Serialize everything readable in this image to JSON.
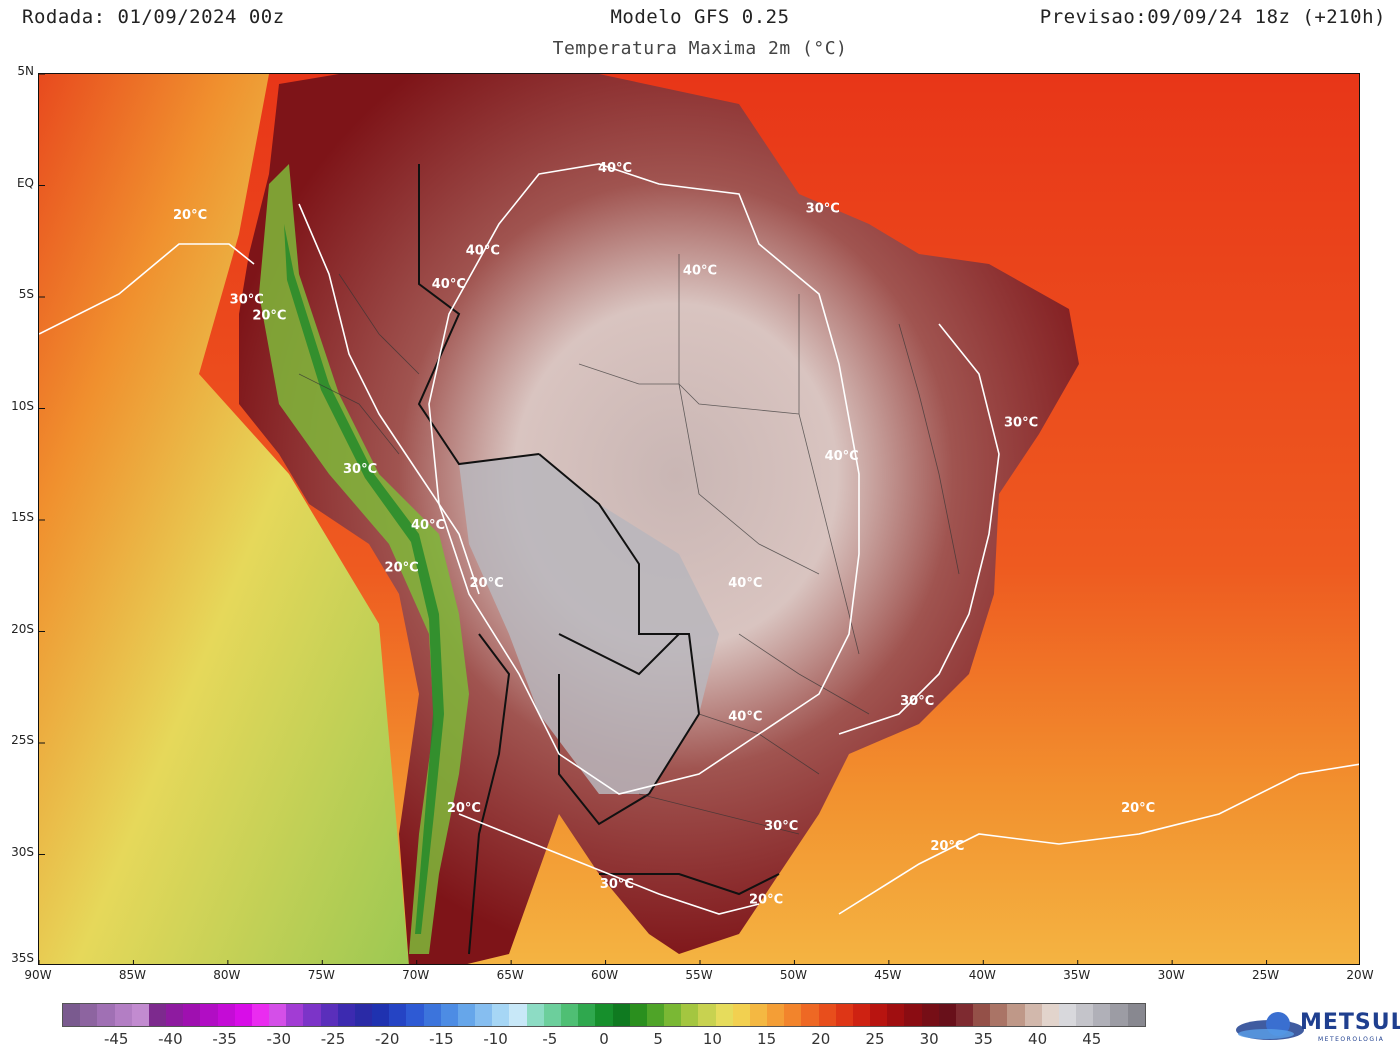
{
  "header": {
    "run": "Rodada: 01/09/2024 00z",
    "model": "Modelo GFS 0.25",
    "forecast": "Previsao:09/09/24 18z (+210h)",
    "subtitle": "Temperatura Maxima 2m (°C)"
  },
  "axes": {
    "lat_labels": [
      "5N",
      "EQ",
      "5S",
      "10S",
      "15S",
      "20S",
      "25S",
      "30S",
      "35S"
    ],
    "lon_labels": [
      "90W",
      "85W",
      "80W",
      "75W",
      "70W",
      "65W",
      "60W",
      "55W",
      "50W",
      "45W",
      "40W",
      "35W",
      "30W",
      "25W",
      "20W"
    ],
    "lat_range": [
      -35,
      5
    ],
    "lon_range": [
      -90,
      -20
    ]
  },
  "isotherm_labels": [
    {
      "text": "20°C",
      "lon": -82,
      "lat": -1.5
    },
    {
      "text": "40°C",
      "lon": -59.5,
      "lat": 0.6
    },
    {
      "text": "30°C",
      "lon": -48.5,
      "lat": -1.2
    },
    {
      "text": "40°C",
      "lon": -66.5,
      "lat": -3.1
    },
    {
      "text": "40°C",
      "lon": -55,
      "lat": -4.0
    },
    {
      "text": "40°C",
      "lon": -68.3,
      "lat": -4.6
    },
    {
      "text": "30°C",
      "lon": -79,
      "lat": -5.3
    },
    {
      "text": "20°C",
      "lon": -77.8,
      "lat": -6.0
    },
    {
      "text": "30°C",
      "lon": -38,
      "lat": -10.8
    },
    {
      "text": "40°C",
      "lon": -47.5,
      "lat": -12.3
    },
    {
      "text": "30°C",
      "lon": -73,
      "lat": -12.9
    },
    {
      "text": "40°C",
      "lon": -69.4,
      "lat": -15.4
    },
    {
      "text": "20°C",
      "lon": -70.8,
      "lat": -17.3
    },
    {
      "text": "20°C",
      "lon": -66.3,
      "lat": -18.0
    },
    {
      "text": "40°C",
      "lon": -52.6,
      "lat": -18.0
    },
    {
      "text": "30°C",
      "lon": -43.5,
      "lat": -23.3
    },
    {
      "text": "40°C",
      "lon": -52.6,
      "lat": -24.0
    },
    {
      "text": "20°C",
      "lon": -67.5,
      "lat": -28.1
    },
    {
      "text": "30°C",
      "lon": -50.7,
      "lat": -28.9
    },
    {
      "text": "20°C",
      "lon": -31.8,
      "lat": -28.1
    },
    {
      "text": "20°C",
      "lon": -41.9,
      "lat": -29.8
    },
    {
      "text": "30°C",
      "lon": -59.4,
      "lat": -31.5
    },
    {
      "text": "20°C",
      "lon": -51.5,
      "lat": -32.2
    }
  ],
  "colorbar": {
    "colors": [
      "#7a5a8f",
      "#8d64a0",
      "#a070b4",
      "#b37ec4",
      "#c28bd0",
      "#7d2a8e",
      "#8e1ba0",
      "#9f10b0",
      "#b10dc4",
      "#c40cd6",
      "#d80de8",
      "#ea2cf0",
      "#d44fe8",
      "#a23cd4",
      "#7c34c8",
      "#5a2fbb",
      "#3c2ab0",
      "#2a2aa6",
      "#1f32b0",
      "#2544c4",
      "#2e5ad4",
      "#3c74dc",
      "#4d8ce4",
      "#66a6ea",
      "#86bef0",
      "#a6d6f5",
      "#c8e8f8",
      "#8ddcc4",
      "#6ccf9c",
      "#4fbf74",
      "#2fa84e",
      "#168f2c",
      "#0f7a20",
      "#2a8f1e",
      "#4fa428",
      "#7ab834",
      "#a4c640",
      "#c8d250",
      "#e6dc5c",
      "#f2d050",
      "#f4b842",
      "#f49e36",
      "#f2842c",
      "#ee6824",
      "#e84e1c",
      "#de3616",
      "#ce2212",
      "#b81410",
      "#a00e10",
      "#8a0c12",
      "#760e16",
      "#68101a",
      "#7e2a30",
      "#945048",
      "#aa7466",
      "#bf9888",
      "#d2b8ac",
      "#e2d4cc",
      "#d8d8dc",
      "#c4c4ca",
      "#b0b0b8",
      "#9c9ca4",
      "#888890"
    ],
    "ticks": [
      "-45",
      "-40",
      "-35",
      "-30",
      "-25",
      "-20",
      "-15",
      "-10",
      "-5",
      "0",
      "5",
      "10",
      "15",
      "20",
      "25",
      "30",
      "35",
      "40",
      "45"
    ],
    "tick_min": -45,
    "tick_max": 45
  },
  "logo": {
    "name": "METSUL",
    "tagline": "METEOROLOGIA"
  }
}
